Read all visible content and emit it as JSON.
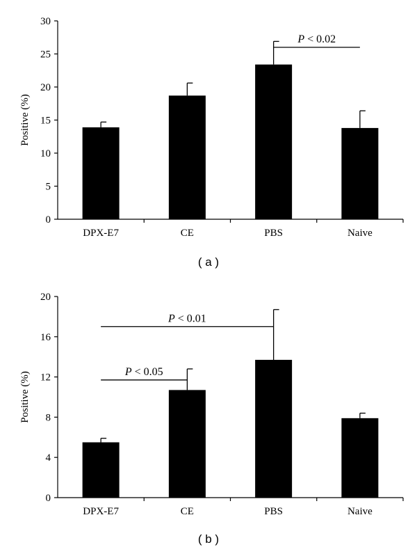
{
  "chart_data": [
    {
      "type": "bar",
      "panel_label": "( a )",
      "ylabel": "Positive (%)",
      "xlabel": "",
      "categories": [
        "DPX-E7",
        "CE",
        "PBS",
        "Naive"
      ],
      "values": [
        13.9,
        18.7,
        23.4,
        13.8
      ],
      "errors": [
        0.8,
        1.9,
        3.5,
        2.6
      ],
      "ylim": [
        0,
        30
      ],
      "yticks": [
        0,
        5,
        10,
        15,
        20,
        25,
        30
      ],
      "grid": false,
      "bar_color": "#000000",
      "annotations": [
        {
          "text_italic": "P",
          "text_rest": " < 0.02",
          "from": "PBS",
          "to": "Naive",
          "y": 26.0
        }
      ]
    },
    {
      "type": "bar",
      "panel_label": "( b )",
      "ylabel": "Positive (%)",
      "xlabel": "",
      "categories": [
        "DPX-E7",
        "CE",
        "PBS",
        "Naive"
      ],
      "values": [
        5.5,
        10.7,
        13.7,
        7.9
      ],
      "errors": [
        0.4,
        2.1,
        5.0,
        0.5
      ],
      "ylim": [
        0,
        20
      ],
      "yticks": [
        0,
        4,
        8,
        12,
        16,
        20
      ],
      "grid": false,
      "bar_color": "#000000",
      "annotations": [
        {
          "text_italic": "P",
          "text_rest": " < 0.01",
          "from": "DPX-E7",
          "to": "PBS",
          "y": 17.0
        },
        {
          "text_italic": "P",
          "text_rest": " < 0.05",
          "from": "DPX-E7",
          "to": "CE",
          "y": 11.7
        }
      ]
    }
  ]
}
